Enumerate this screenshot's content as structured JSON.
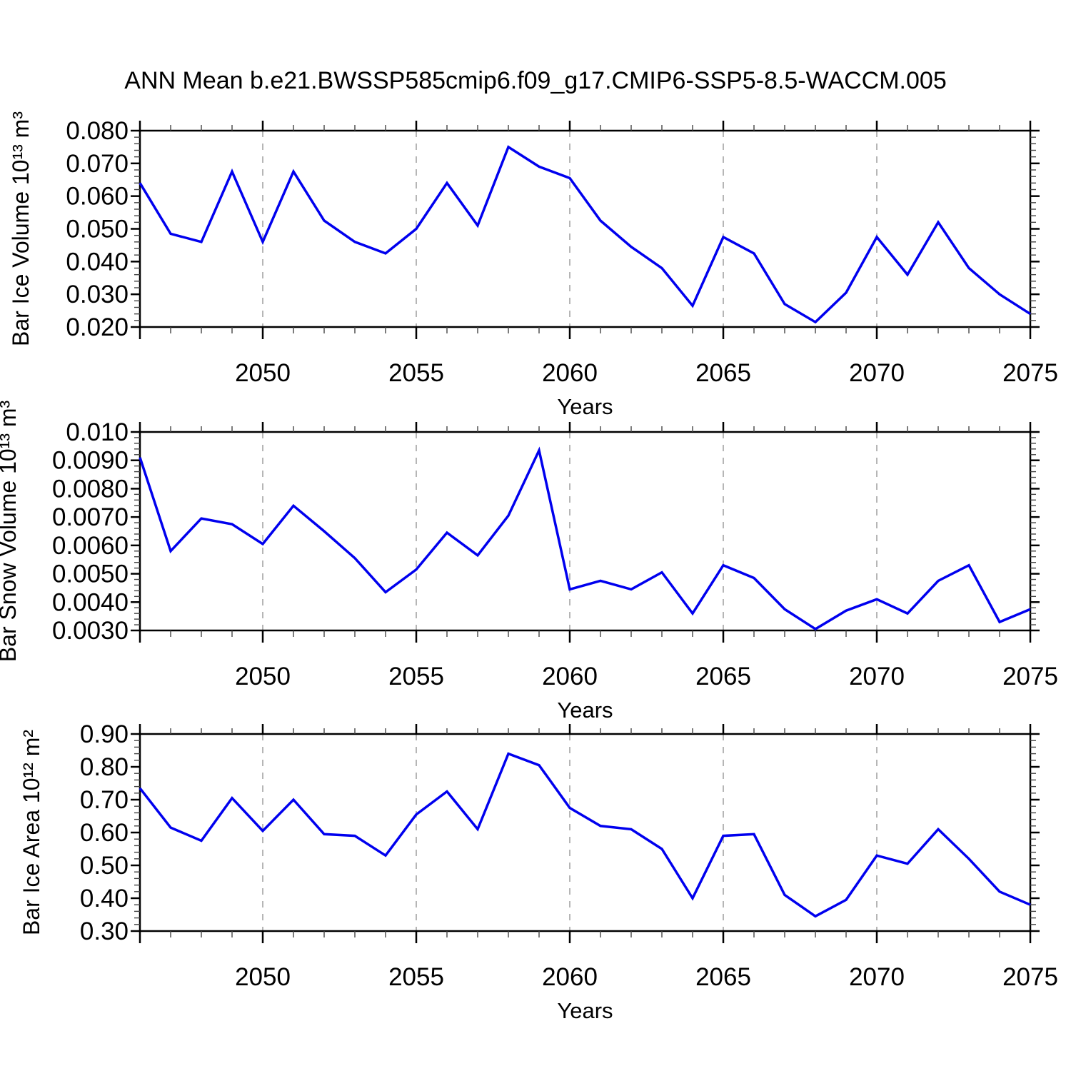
{
  "title": "ANN Mean b.e21.BWSSP585cmip6.f09_g17.CMIP6-SSP5-8.5-WACCM.005",
  "style": {
    "line_color": "#0000ee",
    "grid_color": "#9e9e9e",
    "axis_color": "#000000",
    "minor_tick_color": "#444444",
    "background": "#ffffff"
  },
  "x_axis": {
    "label": "Years",
    "xlim": [
      2046,
      2075
    ],
    "ticks": [
      {
        "v": 2050,
        "label": "2050"
      },
      {
        "v": 2055,
        "label": "2055"
      },
      {
        "v": 2060,
        "label": "2060"
      },
      {
        "v": 2065,
        "label": "2065"
      },
      {
        "v": 2070,
        "label": "2070"
      },
      {
        "v": 2075,
        "label": "2075"
      }
    ],
    "gridlines": [
      2050,
      2055,
      2060,
      2065,
      2070
    ]
  },
  "chart_data": [
    {
      "type": "line",
      "title": "",
      "ylabel": "Bar Ice Volume 10¹³ m³",
      "ylim": [
        0.02,
        0.08
      ],
      "grid": "vertical-dashed",
      "legend": "none",
      "y_minor_step": 0.002,
      "yticks": [
        {
          "v": 0.08,
          "label": "0.080"
        },
        {
          "v": 0.07,
          "label": "0.070"
        },
        {
          "v": 0.06,
          "label": "0.060"
        },
        {
          "v": 0.05,
          "label": "0.050"
        },
        {
          "v": 0.04,
          "label": "0.040"
        },
        {
          "v": 0.03,
          "label": "0.030"
        },
        {
          "v": 0.02,
          "label": "0.020"
        }
      ],
      "x": [
        2046,
        2047,
        2048,
        2049,
        2050,
        2051,
        2052,
        2053,
        2054,
        2055,
        2056,
        2057,
        2058,
        2059,
        2060,
        2061,
        2062,
        2063,
        2064,
        2065,
        2066,
        2067,
        2068,
        2069,
        2070,
        2071,
        2072,
        2073,
        2074,
        2075
      ],
      "values": [
        0.064,
        0.0485,
        0.046,
        0.0675,
        0.046,
        0.0675,
        0.0525,
        0.046,
        0.0425,
        0.05,
        0.064,
        0.051,
        0.075,
        0.069,
        0.0655,
        0.0525,
        0.0445,
        0.038,
        0.0265,
        0.0475,
        0.0425,
        0.027,
        0.0215,
        0.0305,
        0.0475,
        0.036,
        0.052,
        0.038,
        0.03,
        0.024
      ]
    },
    {
      "type": "line",
      "title": "",
      "ylabel": "Bar Snow Volume 10¹³ m³",
      "ylim": [
        0.003,
        0.01
      ],
      "grid": "vertical-dashed",
      "legend": "none",
      "y_minor_step": 0.0002,
      "yticks": [
        {
          "v": 0.01,
          "label": "0.010"
        },
        {
          "v": 0.009,
          "label": "0.0090"
        },
        {
          "v": 0.008,
          "label": "0.0080"
        },
        {
          "v": 0.007,
          "label": "0.0070"
        },
        {
          "v": 0.006,
          "label": "0.0060"
        },
        {
          "v": 0.005,
          "label": "0.0050"
        },
        {
          "v": 0.004,
          "label": "0.0040"
        },
        {
          "v": 0.003,
          "label": "0.0030"
        }
      ],
      "x": [
        2046,
        2047,
        2048,
        2049,
        2050,
        2051,
        2052,
        2053,
        2054,
        2055,
        2056,
        2057,
        2058,
        2059,
        2060,
        2061,
        2062,
        2063,
        2064,
        2065,
        2066,
        2067,
        2068,
        2069,
        2070,
        2071,
        2072,
        2073,
        2074,
        2075
      ],
      "values": [
        0.0091,
        0.0058,
        0.00695,
        0.00675,
        0.00605,
        0.0074,
        0.0065,
        0.00555,
        0.00435,
        0.00515,
        0.00645,
        0.00565,
        0.00705,
        0.00935,
        0.00445,
        0.00475,
        0.00445,
        0.00505,
        0.0036,
        0.0053,
        0.00485,
        0.00375,
        0.00305,
        0.0037,
        0.0041,
        0.0036,
        0.00475,
        0.0053,
        0.0033,
        0.00375
      ]
    },
    {
      "type": "line",
      "title": "",
      "ylabel": "Bar Ice Area 10¹² m²",
      "ylim": [
        0.3,
        0.9
      ],
      "grid": "vertical-dashed",
      "legend": "none",
      "y_minor_step": 0.02,
      "yticks": [
        {
          "v": 0.9,
          "label": "0.90"
        },
        {
          "v": 0.8,
          "label": "0.80"
        },
        {
          "v": 0.7,
          "label": "0.70"
        },
        {
          "v": 0.6,
          "label": "0.60"
        },
        {
          "v": 0.5,
          "label": "0.50"
        },
        {
          "v": 0.4,
          "label": "0.40"
        },
        {
          "v": 0.3,
          "label": "0.30"
        }
      ],
      "x": [
        2046,
        2047,
        2048,
        2049,
        2050,
        2051,
        2052,
        2053,
        2054,
        2055,
        2056,
        2057,
        2058,
        2059,
        2060,
        2061,
        2062,
        2063,
        2064,
        2065,
        2066,
        2067,
        2068,
        2069,
        2070,
        2071,
        2072,
        2073,
        2074,
        2075
      ],
      "values": [
        0.735,
        0.615,
        0.575,
        0.705,
        0.605,
        0.7,
        0.595,
        0.59,
        0.53,
        0.655,
        0.725,
        0.61,
        0.84,
        0.805,
        0.675,
        0.62,
        0.61,
        0.55,
        0.4,
        0.59,
        0.595,
        0.41,
        0.345,
        0.395,
        0.53,
        0.505,
        0.61,
        0.52,
        0.42,
        0.38
      ]
    }
  ]
}
